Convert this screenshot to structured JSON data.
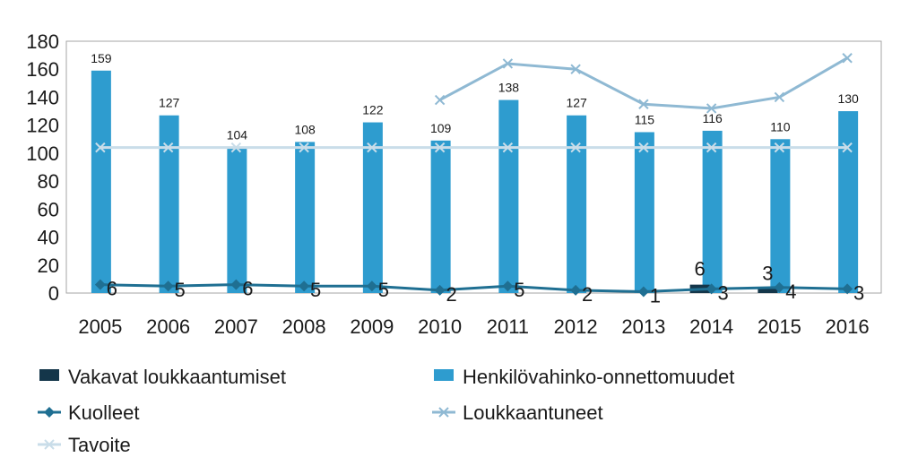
{
  "chart_data": {
    "type": "bar",
    "title": "",
    "xlabel": "",
    "ylabel": "",
    "categories": [
      "2005",
      "2006",
      "2007",
      "2008",
      "2009",
      "2010",
      "2011",
      "2012",
      "2013",
      "2014",
      "2015",
      "2016"
    ],
    "ylim": [
      0,
      180
    ],
    "yticks": [
      0,
      20,
      40,
      60,
      80,
      100,
      120,
      140,
      160,
      180
    ],
    "grid": false,
    "legend_position": "bottom",
    "series": [
      {
        "name": "Vakavat loukkaantumiset",
        "kind": "bar",
        "color": "#14364a",
        "values": [
          null,
          null,
          null,
          null,
          null,
          null,
          null,
          null,
          null,
          6,
          3,
          null
        ],
        "labels": [
          "",
          "",
          "",
          "",
          "",
          "",
          "",
          "",
          "",
          "6",
          "3",
          ""
        ]
      },
      {
        "name": "Henkilövahinko-onnettomuudet",
        "kind": "bar",
        "color": "#2e9ccf",
        "values": [
          159,
          127,
          104,
          108,
          122,
          109,
          138,
          127,
          115,
          116,
          110,
          130
        ],
        "labels": [
          "159",
          "127",
          "104",
          "108",
          "122",
          "109",
          "138",
          "127",
          "115",
          "116",
          "110",
          "130"
        ]
      },
      {
        "name": "Kuolleet",
        "kind": "line",
        "marker": "diamond",
        "color": "#1f6f92",
        "values": [
          6,
          5,
          6,
          5,
          5,
          2,
          5,
          2,
          1,
          3,
          4,
          3
        ],
        "labels": [
          "6",
          "5",
          "6",
          "5",
          "5",
          "2",
          "5",
          "2",
          "1",
          "3",
          "4",
          "3"
        ]
      },
      {
        "name": "Loukkaantuneet",
        "kind": "line",
        "marker": "x",
        "color": "#8fb9d3",
        "values": [
          null,
          null,
          null,
          null,
          null,
          138,
          164,
          160,
          135,
          132,
          140,
          168
        ]
      },
      {
        "name": "Tavoite",
        "kind": "line",
        "marker": "x",
        "color": "#c9dde9",
        "values": [
          104,
          104,
          104,
          104,
          104,
          104,
          104,
          104,
          104,
          104,
          104,
          104
        ]
      }
    ]
  }
}
